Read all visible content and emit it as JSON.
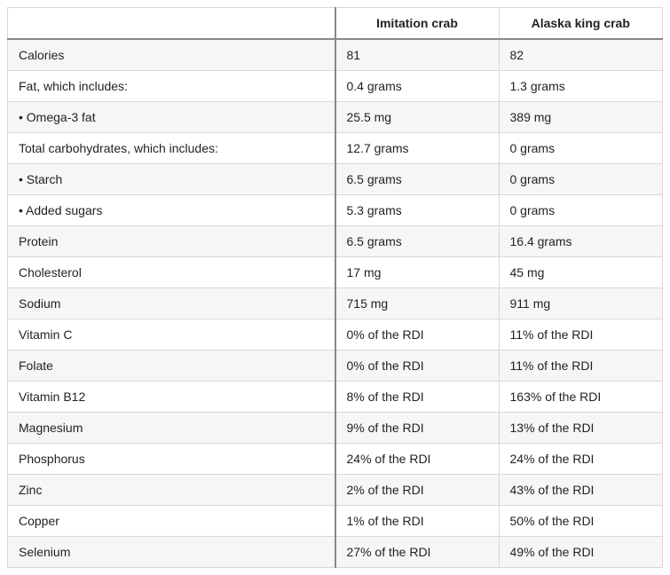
{
  "table": {
    "type": "table",
    "columns": [
      "",
      "Imitation crab",
      "Alaska king crab"
    ],
    "column_widths": [
      "50%",
      "25%",
      "25%"
    ],
    "header_alignment": [
      "left",
      "center",
      "center"
    ],
    "body_alignment": [
      "left",
      "left",
      "left"
    ],
    "rows": [
      [
        "Calories",
        "81",
        "82"
      ],
      [
        "Fat, which includes:",
        "0.4 grams",
        "1.3 grams"
      ],
      [
        "• Omega-3 fat",
        "25.5 mg",
        "389 mg"
      ],
      [
        "Total carbohydrates, which includes:",
        "12.7 grams",
        "0 grams"
      ],
      [
        "• Starch",
        "6.5 grams",
        "0 grams"
      ],
      [
        "• Added sugars",
        "5.3 grams",
        "0 grams"
      ],
      [
        "Protein",
        "6.5 grams",
        "16.4 grams"
      ],
      [
        "Cholesterol",
        "17 mg",
        "45 mg"
      ],
      [
        "Sodium",
        "715 mg",
        "911 mg"
      ],
      [
        "Vitamin C",
        "0% of the RDI",
        "11% of the RDI"
      ],
      [
        "Folate",
        "0% of the RDI",
        "11% of the RDI"
      ],
      [
        "Vitamin B12",
        "8% of the RDI",
        "163% of the RDI"
      ],
      [
        "Magnesium",
        "9% of the RDI",
        "13% of the RDI"
      ],
      [
        "Phosphorus",
        "24% of the RDI",
        "24% of the RDI"
      ],
      [
        "Zinc",
        "2% of the RDI",
        "43% of the RDI"
      ],
      [
        "Copper",
        "1% of the RDI",
        "50% of the RDI"
      ],
      [
        "Selenium",
        "27% of the RDI",
        "49% of the RDI"
      ]
    ],
    "styling": {
      "font_size": 14,
      "text_color": "#231f20",
      "row_stripe_odd": "#f6f6f6",
      "row_stripe_even": "#ffffff",
      "border_color": "#d8d8d8",
      "divider_color": "#888888",
      "header_bottom_border_width": 2,
      "first_data_col_left_border_width": 2,
      "cell_padding": "9px 12px",
      "header_font_weight": 600
    }
  }
}
